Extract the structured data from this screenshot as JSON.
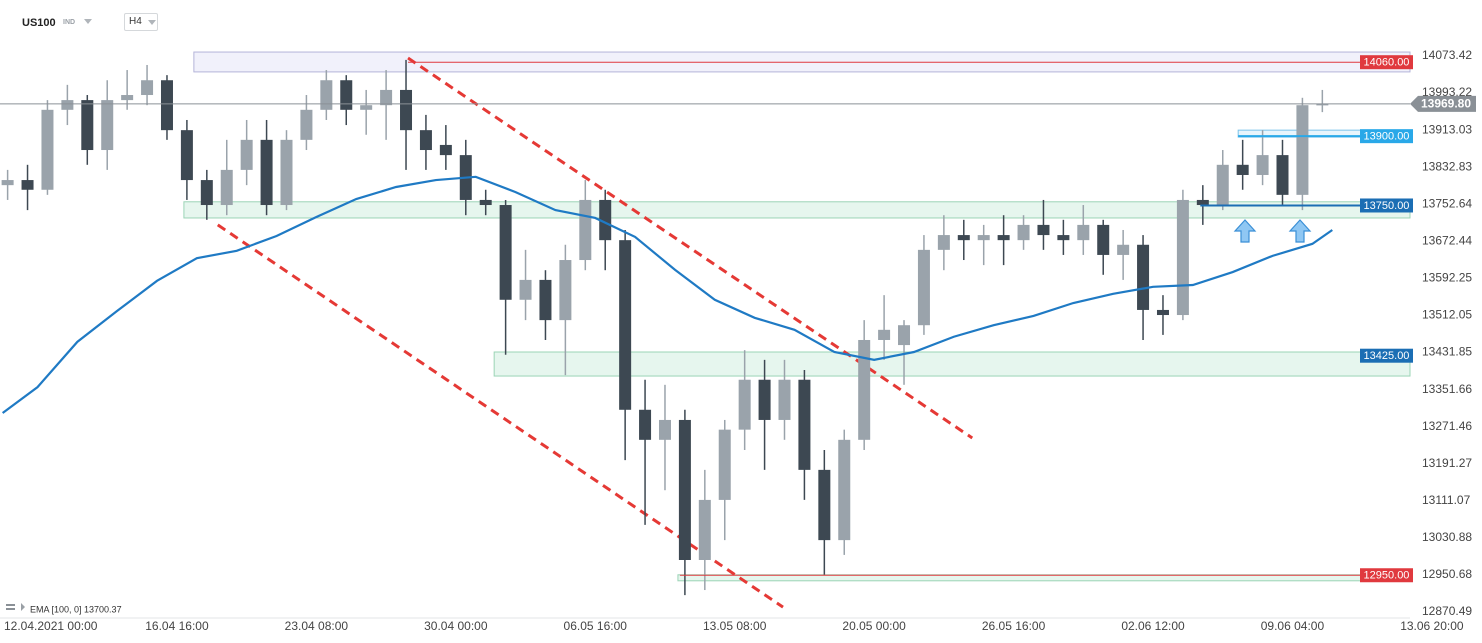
{
  "header": {
    "symbol": "US100",
    "market": "IND",
    "timeframe": "H4"
  },
  "chart_data": {
    "type": "candlestick",
    "x": [
      -6,
      -2,
      2,
      6,
      10,
      14,
      18,
      22,
      26,
      30,
      34,
      38,
      42,
      46,
      50,
      54,
      58,
      62,
      66,
      70,
      74,
      78,
      82,
      86,
      90,
      94,
      98,
      102,
      106,
      110,
      114,
      118,
      122,
      126,
      130,
      134,
      138,
      142,
      146,
      150,
      154,
      158,
      162,
      166,
      170,
      174,
      178,
      182,
      186,
      190,
      194,
      198,
      202,
      206,
      210,
      214,
      218,
      222,
      226,
      230,
      234,
      238,
      242,
      246,
      250,
      254,
      258
    ],
    "open": [
      13794,
      13805,
      13784,
      13957,
      13978,
      13870,
      13978,
      13989,
      14021,
      13913,
      13805,
      13751,
      13827,
      13892,
      13751,
      13892,
      13957,
      14021,
      13957,
      13967,
      14000,
      13913,
      13881,
      13859,
      13762,
      13751,
      13546,
      13589,
      13502,
      13632,
      13762,
      13675,
      13308,
      13243,
      13286,
      12983,
      13113,
      13265,
      13373,
      13286,
      13373,
      13178,
      13026,
      13243,
      13459,
      13448,
      13491,
      13654,
      13686,
      13675,
      13686,
      13675,
      13708,
      13686,
      13675,
      13708,
      13643,
      13665,
      13524,
      13513,
      13762,
      13751,
      13838,
      13816,
      13859,
      13773,
      13967
    ],
    "high": [
      13827,
      13838,
      13978,
      14011,
      13989,
      14021,
      14043,
      14054,
      14032,
      13935,
      13827,
      13892,
      13935,
      13935,
      13913,
      13989,
      14043,
      14032,
      14000,
      14043,
      14065,
      13946,
      13924,
      13892,
      13784,
      13762,
      13654,
      13610,
      13665,
      13805,
      13784,
      13697,
      13373,
      13362,
      13308,
      13178,
      13286,
      13437,
      13416,
      13416,
      13394,
      13221,
      13265,
      13502,
      13556,
      13502,
      13686,
      13729,
      13719,
      13708,
      13729,
      13729,
      13762,
      13719,
      13751,
      13719,
      13697,
      13686,
      13556,
      13784,
      13794,
      13870,
      13892,
      13913,
      13892,
      13983,
      14000
    ],
    "low": [
      13762,
      13740,
      13773,
      13924,
      13838,
      13827,
      13957,
      13967,
      13892,
      13762,
      13719,
      13729,
      13794,
      13729,
      13740,
      13870,
      13935,
      13924,
      13903,
      13892,
      13827,
      13827,
      13827,
      13729,
      13729,
      13427,
      13502,
      13459,
      13383,
      13610,
      13610,
      13199,
      13059,
      13134,
      12907,
      12918,
      13026,
      13221,
      13178,
      13243,
      13113,
      12951,
      12994,
      13221,
      13416,
      13362,
      13470,
      13610,
      13632,
      13621,
      13621,
      13654,
      13654,
      13643,
      13643,
      13600,
      13589,
      13459,
      13470,
      13502,
      13708,
      13740,
      13784,
      13794,
      13751,
      13740,
      13952
    ],
    "close": [
      13805,
      13784,
      13957,
      13978,
      13870,
      13978,
      13989,
      14021,
      13913,
      13805,
      13751,
      13827,
      13892,
      13751,
      13892,
      13957,
      14021,
      13957,
      13967,
      14000,
      13913,
      13870,
      13859,
      13762,
      13751,
      13546,
      13589,
      13502,
      13632,
      13762,
      13675,
      13308,
      13243,
      13286,
      12983,
      13113,
      13265,
      13373,
      13286,
      13373,
      13178,
      13026,
      13243,
      13459,
      13481,
      13491,
      13654,
      13686,
      13675,
      13686,
      13675,
      13708,
      13686,
      13675,
      13708,
      13643,
      13665,
      13524,
      13513,
      13762,
      13751,
      13838,
      13816,
      13859,
      13773,
      13967,
      13969.8
    ],
    "up_color": "#9aa3ab",
    "down_color": "#3d4852",
    "xlim": [
      -7.53,
      290.06
    ],
    "xticks": [
      {
        "value": 0,
        "label": "12.04.2021 00:00"
      },
      {
        "value": 28,
        "label": "16.04 16:00"
      },
      {
        "value": 56,
        "label": "23.04 08:00"
      },
      {
        "value": 84,
        "label": "30.04 00:00"
      },
      {
        "value": 112,
        "label": "06.05 16:00"
      },
      {
        "value": 140,
        "label": "13.05 08:00"
      },
      {
        "value": 168,
        "label": "20.05 00:00"
      },
      {
        "value": 196,
        "label": "26.05 16:00"
      },
      {
        "value": 224,
        "label": "02.06 12:00"
      },
      {
        "value": 252,
        "label": "09.06 04:00"
      },
      {
        "value": 280,
        "label": "13.06 20:00"
      }
    ],
    "ylim": [
      12857.51,
      14194.58
    ],
    "yticks": [
      14073.42,
      13993.22,
      13913.03,
      13832.83,
      13752.64,
      13672.44,
      13592.25,
      13512.05,
      13431.85,
      13351.66,
      13271.46,
      13191.27,
      13111.07,
      13030.88,
      12950.68,
      12870.49
    ],
    "grid": false,
    "overlay": {
      "name": "EMA [100, 0] 13700.37",
      "color": "#1f7ac4",
      "x": [
        -7,
        0,
        8,
        16,
        24,
        32,
        40,
        48,
        56,
        64,
        72,
        80,
        88,
        96,
        104,
        112,
        120,
        128,
        136,
        144,
        152,
        160,
        168,
        176,
        184,
        192,
        200,
        208,
        216,
        224,
        232,
        240,
        248,
        256,
        260
      ],
      "values": [
        13301,
        13357,
        13455,
        13522,
        13587,
        13636,
        13652,
        13684,
        13725,
        13764,
        13790,
        13805,
        13812,
        13779,
        13740,
        13723,
        13682,
        13611,
        13546,
        13507,
        13481,
        13433,
        13416,
        13433,
        13466,
        13491,
        13511,
        13539,
        13559,
        13574,
        13578,
        13606,
        13641,
        13667,
        13697
      ]
    },
    "zones": [
      {
        "from": 14082,
        "to": 14039,
        "start": 31.4,
        "fill": "#f1f1fb",
        "stroke": "#b4b4d9"
      },
      {
        "from": 13913,
        "to": 13898,
        "start": 241.1,
        "fill": "#e8f5fc",
        "stroke": "#7cc3ea"
      },
      {
        "from": 13758,
        "to": 13723,
        "start": 29.4,
        "fill": "#e6f6ee",
        "stroke": "#9bd4b6"
      },
      {
        "from": 13433,
        "to": 13381,
        "start": 91.7,
        "fill": "#e6f6ee",
        "stroke": "#9bd4b6"
      },
      {
        "from": 12951,
        "to": 12938,
        "start": 128.6,
        "fill": "#e6f6ee",
        "stroke": "#9bd4b6"
      }
    ],
    "trendlines": [
      {
        "x": [
          74.4,
          187.7
        ],
        "y": [
          14069,
          13247
        ],
        "color": "#e53935"
      },
      {
        "x": [
          36.2,
          149.7
        ],
        "y": [
          13708,
          12881
        ],
        "color": "#e53935"
      }
    ],
    "levels": [
      {
        "value": 14060,
        "label": "14060.00",
        "color": "#e0393e",
        "start": 74.4,
        "line": true
      },
      {
        "value": 13900,
        "label": "13900.00",
        "color": "#29a8e8",
        "start": 241.1,
        "line": true
      },
      {
        "value": 13750,
        "label": "13750.00",
        "color": "#1b6eb4",
        "start": 233.5,
        "line": true
      },
      {
        "value": 13425,
        "label": "13425.00",
        "color": "#1b6eb4",
        "start": 91.7,
        "line": false
      },
      {
        "value": 12950,
        "label": "12950.00",
        "color": "#e0393e",
        "start": 129.0,
        "line": true
      }
    ],
    "last_price": {
      "value": 13969.8,
      "label": "13969.80",
      "color": "#8a9096"
    }
  }
}
